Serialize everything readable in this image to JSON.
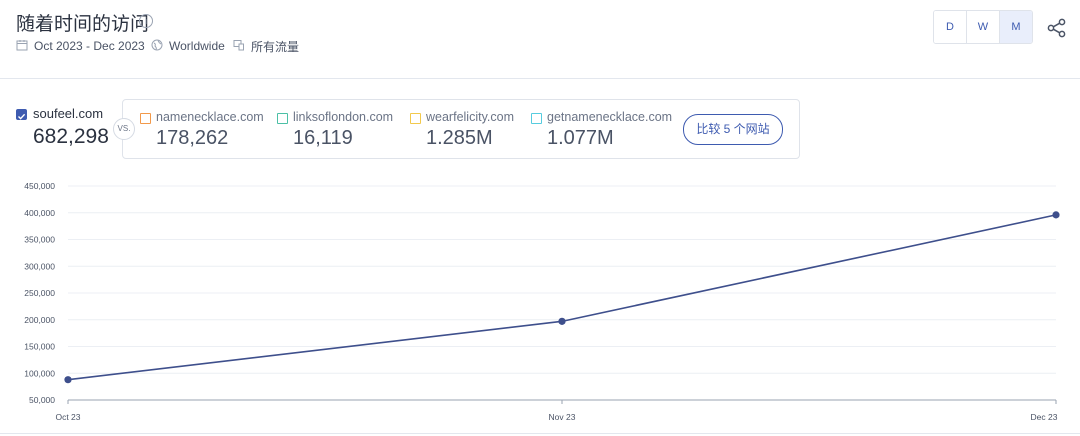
{
  "header": {
    "title": "随着时间的访问",
    "info_icon": "i",
    "date_range": "Oct 2023 - Dec 2023",
    "region": "Worldwide",
    "traffic_type": "所有流量",
    "granularity": [
      "D",
      "W",
      "M"
    ],
    "granularity_active": "M"
  },
  "main_site": {
    "name": "soufeel.com",
    "value": "682,298"
  },
  "vs_label": "VS.",
  "competitors": [
    {
      "name": "namenecklace.com",
      "value": "178,262",
      "color": "#f2994a"
    },
    {
      "name": "linksoflondon.com",
      "value": "16,119",
      "color": "#4cc0a6"
    },
    {
      "name": "wearfelicity.com",
      "value": "1.285M",
      "color": "#f2c94c"
    },
    {
      "name": "getnamenecklace.com",
      "value": "1.077M",
      "color": "#56ccdf"
    }
  ],
  "compare_button": "比较 5 个网站",
  "colors": {
    "accent": "#3e5bb0",
    "line": "#3e4f8c"
  },
  "chart_data": {
    "type": "line",
    "title": "",
    "xlabel": "",
    "ylabel": "",
    "categories": [
      "Oct 23",
      "Nov 23",
      "Dec 23"
    ],
    "series": [
      {
        "name": "soufeel.com",
        "values": [
          88000,
          197000,
          396000
        ]
      }
    ],
    "ylim": [
      50000,
      450000
    ],
    "yticks": [
      450000,
      400000,
      350000,
      300000,
      250000,
      200000,
      150000,
      100000,
      50000
    ],
    "ytick_labels": [
      "450,000",
      "400,000",
      "350,000",
      "300,000",
      "250,000",
      "200,000",
      "150,000",
      "100,000",
      "50,000"
    ],
    "grid": true
  }
}
